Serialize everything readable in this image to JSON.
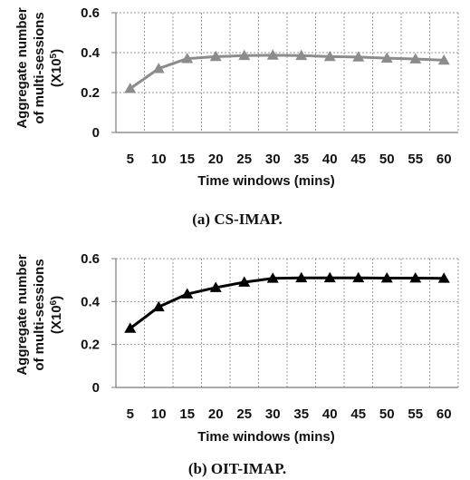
{
  "charts": [
    {
      "caption": "(a)  CS-IMAP.",
      "ylabel_line1": "Aggregate number",
      "ylabel_line2": "of multi-sessions",
      "ylabel_unit": "(X10",
      "ylabel_exp": "5",
      "ylabel_close": ")",
      "xlabel": "Time windows (mins)",
      "line_color": "#8c8c8c",
      "chart_data": {
        "type": "line",
        "x": [
          5,
          10,
          15,
          20,
          25,
          30,
          35,
          40,
          45,
          50,
          55,
          60
        ],
        "series": [
          {
            "values": [
              0.22,
              0.32,
              0.37,
              0.38,
              0.385,
              0.387,
              0.385,
              0.38,
              0.378,
              0.372,
              0.368,
              0.362
            ]
          }
        ],
        "xlabel": "Time windows (mins)",
        "ylabel": "Aggregate number of multi-sessions (X10^5)",
        "ylim": [
          0,
          0.6
        ],
        "yticks": [
          "0",
          "0.2",
          "0.4",
          "0.6"
        ],
        "grid": true,
        "marker": "triangle"
      }
    },
    {
      "caption": "(b)  OIT-IMAP.",
      "ylabel_line1": "Aggregate number",
      "ylabel_line2": "of multi-sessions",
      "ylabel_unit": "(X10",
      "ylabel_exp": "6",
      "ylabel_close": ")",
      "xlabel": "Time windows (mins)",
      "line_color": "#000000",
      "chart_data": {
        "type": "line",
        "x": [
          5,
          10,
          15,
          20,
          25,
          30,
          35,
          40,
          45,
          50,
          55,
          60
        ],
        "series": [
          {
            "values": [
              0.275,
              0.375,
              0.435,
              0.465,
              0.49,
              0.508,
              0.51,
              0.51,
              0.51,
              0.509,
              0.509,
              0.508
            ]
          }
        ],
        "xlabel": "Time windows (mins)",
        "ylabel": "Aggregate number of multi-sessions (X10^6)",
        "ylim": [
          0,
          0.6
        ],
        "yticks": [
          "0",
          "0.2",
          "0.4",
          "0.6"
        ],
        "grid": true,
        "marker": "triangle"
      }
    }
  ]
}
